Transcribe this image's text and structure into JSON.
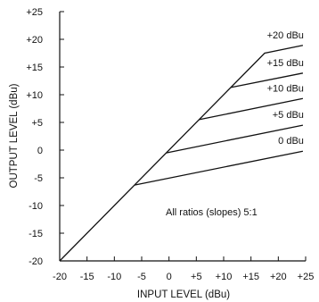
{
  "chart_data": {
    "type": "line",
    "title": "",
    "xlabel": "INPUT LEVEL (dBu)",
    "ylabel": "OUTPUT LEVEL (dBu)",
    "xlim": [
      -20,
      25
    ],
    "ylim": [
      -20,
      25
    ],
    "x_ticks": [
      "-20",
      "-15",
      "-10",
      "-5",
      "0",
      "+5",
      "+10",
      "+15",
      "+20",
      "+25"
    ],
    "y_ticks": [
      "-20",
      "-15",
      "-10",
      "-5",
      "0",
      "+5",
      "+10",
      "+15",
      "+20",
      "+25"
    ],
    "annotation": "All ratios (slopes) 5:1",
    "series": [
      {
        "name": "+20 dBu",
        "points": [
          [
            -20,
            -20
          ],
          [
            17.5,
            17.5
          ],
          [
            24.5,
            18.9
          ]
        ]
      },
      {
        "name": "+15 dBu",
        "points": [
          [
            11.3,
            11.3
          ],
          [
            24.5,
            13.9
          ]
        ]
      },
      {
        "name": "+10 dBu",
        "points": [
          [
            5.5,
            5.5
          ],
          [
            24.5,
            9.3
          ]
        ]
      },
      {
        "name": "+5 dBu",
        "points": [
          [
            -0.5,
            -0.5
          ],
          [
            24.5,
            4.5
          ]
        ]
      },
      {
        "name": "0 dBu",
        "points": [
          [
            -6.3,
            -6.3
          ],
          [
            24.5,
            -0.2
          ]
        ]
      }
    ]
  }
}
